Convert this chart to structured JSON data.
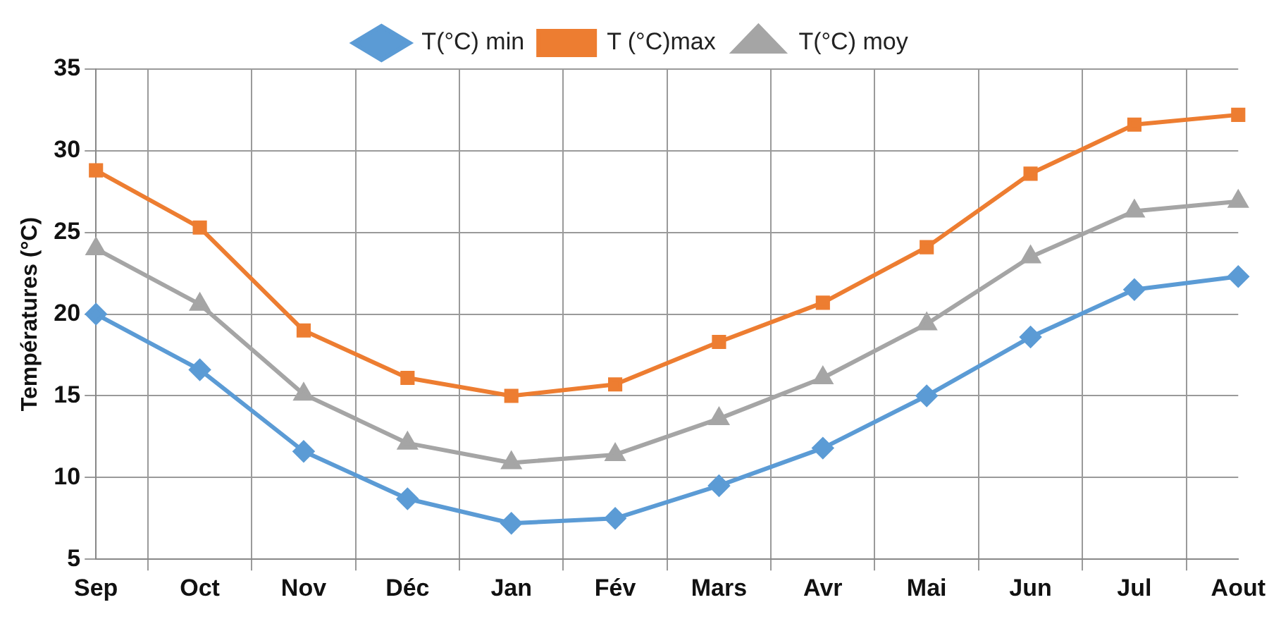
{
  "chart_data": {
    "type": "line",
    "ylabel": "Températures (°C)",
    "categories": [
      "Sep",
      "Oct",
      "Nov",
      "Déc",
      "Jan",
      "Fév",
      "Mars",
      "Avr",
      "Mai",
      "Jun",
      "Jul",
      "Aout"
    ],
    "series": [
      {
        "name": "T(°C) min",
        "color": "#5b9bd5",
        "marker": "diamond",
        "values": [
          20.0,
          16.6,
          11.6,
          8.7,
          7.2,
          7.5,
          9.5,
          11.8,
          15.0,
          18.6,
          21.5,
          22.3
        ]
      },
      {
        "name": "T (°C)max",
        "color": "#ed7d31",
        "marker": "square",
        "values": [
          28.8,
          25.3,
          19.0,
          16.1,
          15.0,
          15.7,
          18.3,
          20.7,
          24.1,
          28.6,
          31.6,
          32.2
        ]
      },
      {
        "name": "T(°C) moy",
        "color": "#a5a5a5",
        "marker": "triangle",
        "values": [
          24.0,
          20.6,
          15.1,
          12.1,
          10.9,
          11.4,
          13.6,
          16.1,
          19.4,
          23.5,
          26.3,
          26.9
        ]
      }
    ],
    "ylim": [
      5,
      35
    ],
    "yticks": [
      5,
      10,
      15,
      20,
      25,
      30,
      35
    ],
    "grid": true,
    "legend": "top",
    "line_style": "solid"
  }
}
